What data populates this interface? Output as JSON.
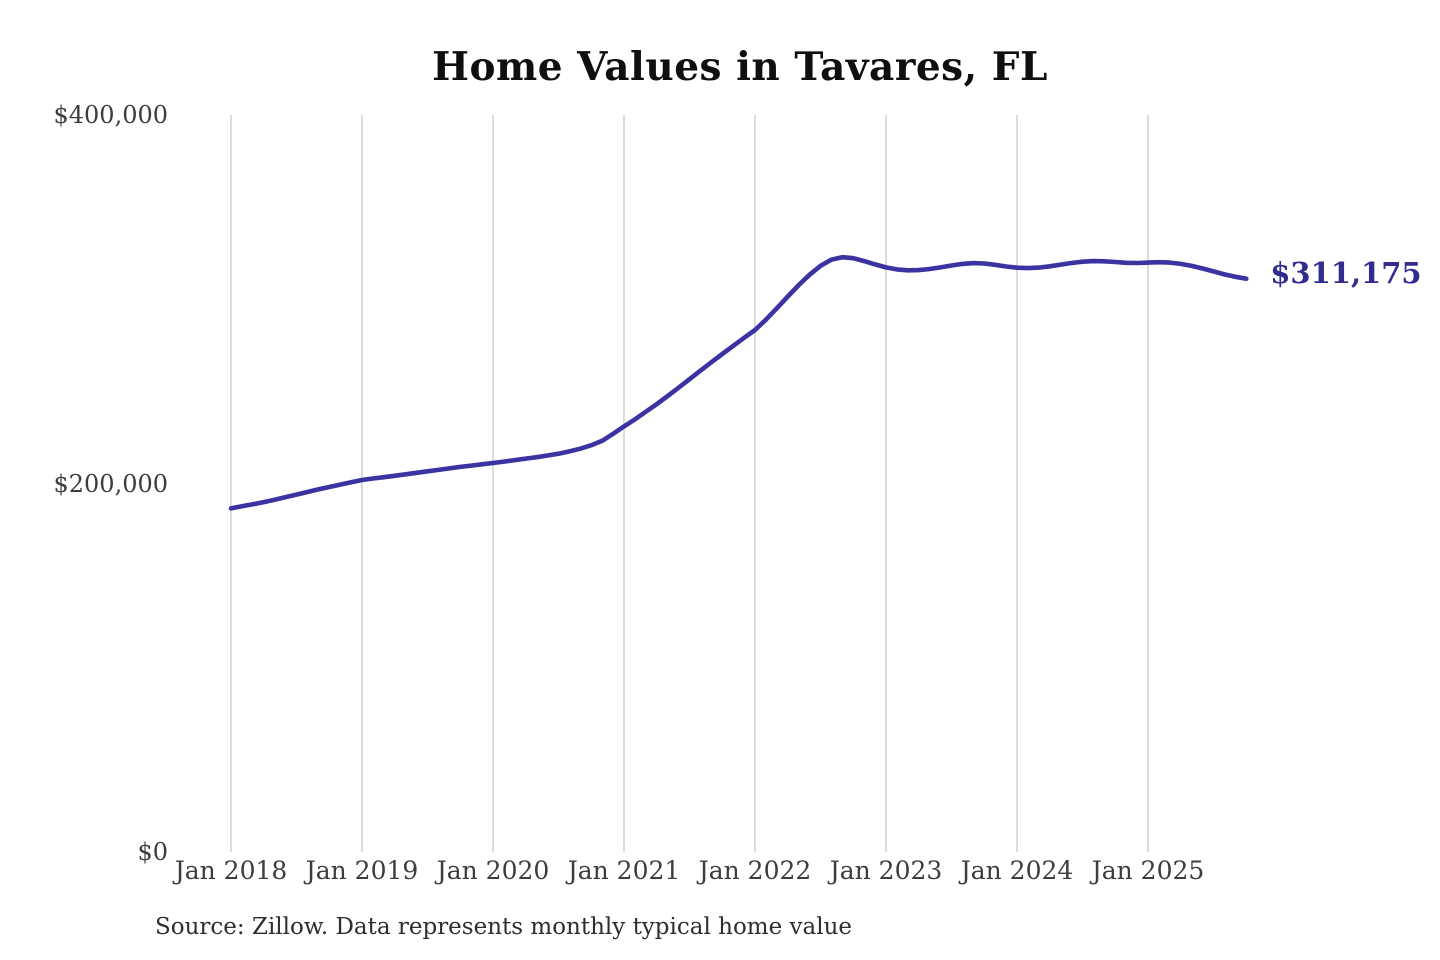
{
  "chart_data": {
    "type": "line",
    "title": "Home Values in Tavares, FL",
    "source_note": "Source: Zillow. Data represents monthly typical home value",
    "series_name": "Monthly typical home value",
    "end_label": "$311,175",
    "end_value": 311175,
    "ylim": [
      0,
      400000
    ],
    "grid": "vertical-only",
    "line_color": "#3b33a2",
    "grid_color": "#c9c9c9",
    "label_color": "#312c8e",
    "x_range": {
      "start": "2018-01",
      "end": "2025-10",
      "step": "1 month"
    },
    "yticks": [
      {
        "value": 0,
        "label": "$0"
      },
      {
        "value": 200000,
        "label": "$200,000"
      },
      {
        "value": 400000,
        "label": "$400,000"
      }
    ],
    "xticks": [
      {
        "month_index": 0,
        "label": "Jan 2018"
      },
      {
        "month_index": 12,
        "label": "Jan 2019"
      },
      {
        "month_index": 24,
        "label": "Jan 2020"
      },
      {
        "month_index": 36,
        "label": "Jan 2021"
      },
      {
        "month_index": 48,
        "label": "Jan 2022"
      },
      {
        "month_index": 60,
        "label": "Jan 2023"
      },
      {
        "month_index": 72,
        "label": "Jan 2024"
      },
      {
        "month_index": 84,
        "label": "Jan 2025"
      }
    ],
    "values": [
      186500,
      187600,
      188700,
      189900,
      191200,
      192600,
      194000,
      195400,
      196800,
      198100,
      199400,
      200700,
      201900,
      202700,
      203400,
      204200,
      205000,
      205800,
      206600,
      207400,
      208200,
      209000,
      209700,
      210400,
      211100,
      211900,
      212700,
      213500,
      214300,
      215200,
      216200,
      217400,
      218900,
      220800,
      223200,
      227000,
      231000,
      234800,
      238900,
      243100,
      247500,
      252000,
      256600,
      261200,
      265800,
      270300,
      274700,
      279100,
      283300,
      288900,
      295100,
      301500,
      307700,
      313300,
      318100,
      321500,
      322800,
      322300,
      320700,
      318900,
      317300,
      316200,
      315700,
      315800,
      316400,
      317300,
      318300,
      319200,
      319600,
      319400,
      318700,
      317800,
      317100,
      316900,
      317200,
      317900,
      318800,
      319700,
      320400,
      320700,
      320600,
      320200,
      319800,
      319700,
      319900,
      320100,
      319900,
      319200,
      318100,
      316700,
      315100,
      313500,
      312200,
      311175
    ]
  }
}
